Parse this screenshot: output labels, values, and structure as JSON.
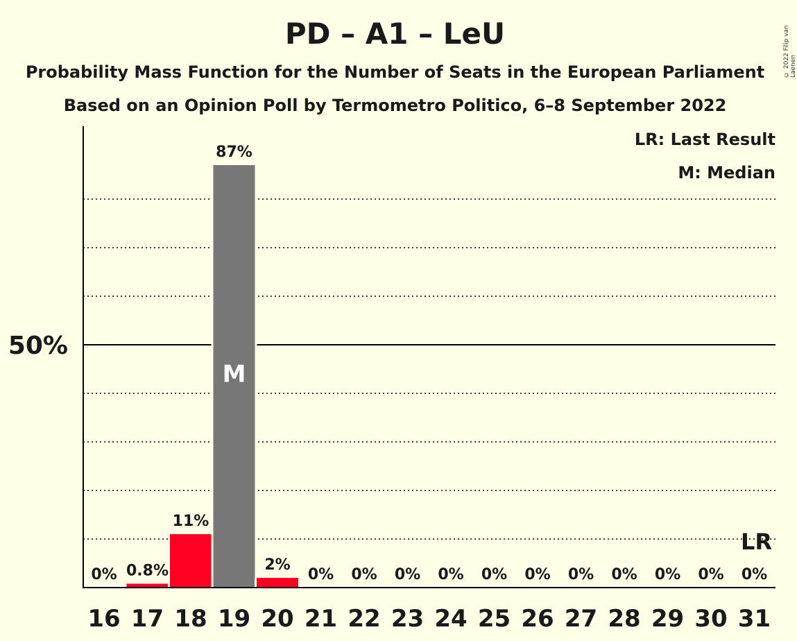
{
  "title": "PD – A1 – LeU",
  "subtitle_1": "Probability Mass Function for the Number of Seats in the European Parliament",
  "subtitle_2": "Based on an Opinion Poll by Termometro Politico, 6–8 September 2022",
  "copyright": "© 2022 Filip van Laenen",
  "legend": {
    "last_result": "LR: Last Result",
    "median": "M: Median"
  },
  "colors": {
    "background": "#FFFEE6",
    "bar": "#FF0022",
    "median_bar": "#777777",
    "axis": "#000000"
  },
  "chart_data": {
    "type": "bar",
    "title": "PD – A1 – LeU",
    "categories": [
      "16",
      "17",
      "18",
      "19",
      "20",
      "21",
      "22",
      "23",
      "24",
      "25",
      "26",
      "27",
      "28",
      "29",
      "30",
      "31"
    ],
    "values": [
      0,
      0.8,
      11,
      87,
      2,
      0,
      0,
      0,
      0,
      0,
      0,
      0,
      0,
      0,
      0,
      0
    ],
    "data_labels": [
      "0%",
      "0.8%",
      "11%",
      "87%",
      "2%",
      "0%",
      "0%",
      "0%",
      "0%",
      "0%",
      "0%",
      "0%",
      "0%",
      "0%",
      "0%",
      "0%"
    ],
    "ylim": [
      0,
      95
    ],
    "y_tick_label": "50%",
    "y_tick_value": 50,
    "gridlines": [
      10,
      20,
      30,
      40,
      60,
      70,
      80
    ],
    "median_seat": "19",
    "median_label": "M",
    "last_result_seat": "31",
    "last_result_label": "LR",
    "legend_position": "top-right"
  }
}
